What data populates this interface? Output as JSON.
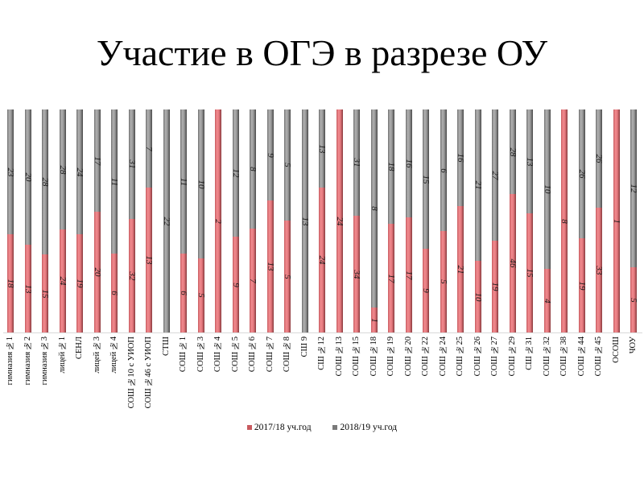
{
  "title": "Участие в ОГЭ в разрезе ОУ",
  "legend": {
    "series1": "2017/18 уч.год",
    "series2": "2018/19 уч.год"
  },
  "colors": {
    "series1": "#e67a7f",
    "series2": "#9a9a9a"
  },
  "chart_data": {
    "type": "bar",
    "stacked": "percent",
    "orientation": "vertical",
    "title": "Участие в ОГЭ в разрезе ОУ",
    "xlabel": "",
    "ylabel": "",
    "legend_position": "bottom",
    "grid": false,
    "categories": [
      "гимназия №1",
      "гимназия №2",
      "гимназия №3",
      "лицей №1",
      "СЕНЛ",
      "лицей №3",
      "лицей №4",
      "СОШ №10 с УИОП",
      "СОШ №46 с УИОП",
      "СТШ",
      "СОШ №1",
      "СОШ №3",
      "СОШ №4",
      "СОШ №5",
      "СОШ №6",
      "СОШ №7",
      "СОШ №8",
      "СШ 9",
      "СШ №12",
      "СОШ №13",
      "СОШ №15",
      "СОШ №18",
      "СОШ №19",
      "СОШ №20",
      "СОШ №22",
      "СОШ №24",
      "СОШ №25",
      "СОШ №26",
      "СОШ №27",
      "СОШ №29",
      "СШ №31",
      "СОШ №32",
      "СОШ №38",
      "СОШ №44",
      "СОШ №45",
      "ОСОШ",
      "ЧОУ"
    ],
    "series": [
      {
        "name": "2017/18 уч.год",
        "values": [
          18,
          13,
          15,
          24,
          19,
          20,
          6,
          32,
          13,
          null,
          6,
          5,
          2,
          9,
          7,
          13,
          5,
          null,
          24,
          24,
          34,
          1,
          17,
          17,
          9,
          5,
          21,
          10,
          19,
          46,
          15,
          4,
          8,
          19,
          33,
          1,
          5
        ]
      },
      {
        "name": "2018/19 уч.год",
        "values": [
          23,
          20,
          28,
          28,
          24,
          17,
          11,
          31,
          7,
          22,
          11,
          10,
          null,
          12,
          8,
          9,
          5,
          13,
          13,
          null,
          31,
          8,
          18,
          16,
          15,
          6,
          16,
          21,
          27,
          28,
          13,
          10,
          null,
          26,
          26,
          null,
          12
        ]
      }
    ]
  }
}
